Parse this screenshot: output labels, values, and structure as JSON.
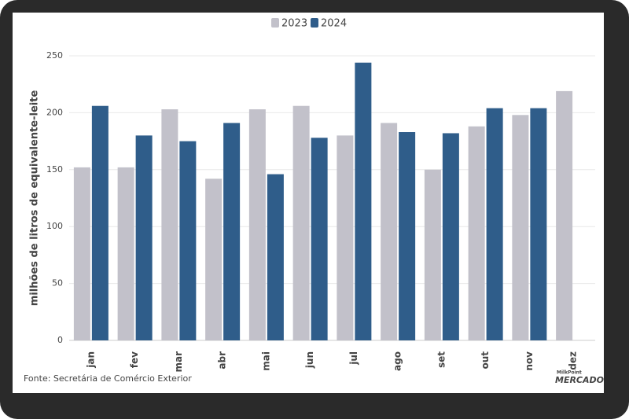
{
  "chart_data": {
    "type": "bar",
    "categories": [
      "jan",
      "fev",
      "mar",
      "abr",
      "mai",
      "jun",
      "jul",
      "ago",
      "set",
      "out",
      "nov",
      "dez"
    ],
    "series": [
      {
        "name": "2023",
        "color": "#c2c1ca",
        "values": [
          152,
          152,
          203,
          142,
          203,
          206,
          180,
          191,
          150,
          188,
          198,
          219
        ]
      },
      {
        "name": "2024",
        "color": "#2f5d8a",
        "values": [
          206,
          180,
          175,
          191,
          146,
          178,
          244,
          183,
          182,
          204,
          204,
          null
        ]
      }
    ],
    "y_label": "milhões de litros de equivalente-leite",
    "ylim": [
      0,
      250
    ],
    "yticks": [
      0,
      50,
      100,
      150,
      200,
      250
    ],
    "grid": true,
    "legend": "top",
    "source": "Fonte: Secretária de Comércio Exterior",
    "logo": {
      "top": "MilkPoint",
      "bottom": "MERCADO"
    }
  }
}
